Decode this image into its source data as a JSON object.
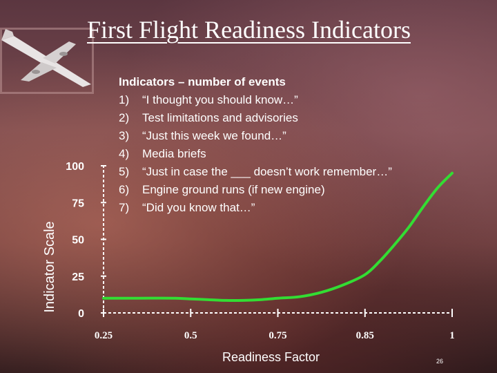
{
  "title": "First Flight Readiness Indicators",
  "indicators": {
    "header": "Indicators – number of events",
    "items": [
      {
        "num": "1)",
        "text": "“I thought you should know…”"
      },
      {
        "num": "2)",
        "text": "Test limitations and advisories"
      },
      {
        "num": "3)",
        "text": "“Just this week we found…”"
      },
      {
        "num": "4)",
        "text": "Media briefs"
      },
      {
        "num": "5)",
        "text": "“Just in case the ___ doesn’t work remember…”"
      },
      {
        "num": "6)",
        "text": "Engine ground runs (if new engine)"
      },
      {
        "num": "7)",
        "text": "“Did you know that…”"
      }
    ]
  },
  "slide_number": "26",
  "colors": {
    "curve": "#33dd33",
    "text": "#ffffff",
    "axis": "#ffffff"
  },
  "chart_data": {
    "type": "line",
    "xlabel": "Readiness Factor",
    "ylabel": "Indicator Scale",
    "x_ticks": [
      0.25,
      0.5,
      0.75,
      0.85,
      1
    ],
    "x_tick_labels": [
      "0.25",
      "0.5",
      "0.75",
      "0.85",
      "1"
    ],
    "y_ticks": [
      0,
      25,
      50,
      75,
      100
    ],
    "y_tick_labels": [
      "0",
      "25",
      "50",
      "75",
      "100"
    ],
    "ylim": [
      0,
      100
    ],
    "grid": false,
    "series": [
      {
        "x": [
          0.25,
          0.35,
          0.45,
          0.5,
          0.55,
          0.6,
          0.65,
          0.7,
          0.75,
          0.775,
          0.8,
          0.825,
          0.85,
          0.875,
          0.9,
          0.925,
          0.95,
          0.975,
          1.0
        ],
        "y": [
          10,
          10,
          10,
          9.5,
          9,
          8.5,
          8.5,
          9,
          10,
          11,
          14,
          19,
          26,
          35,
          46,
          58,
          72,
          85,
          95
        ]
      }
    ]
  }
}
